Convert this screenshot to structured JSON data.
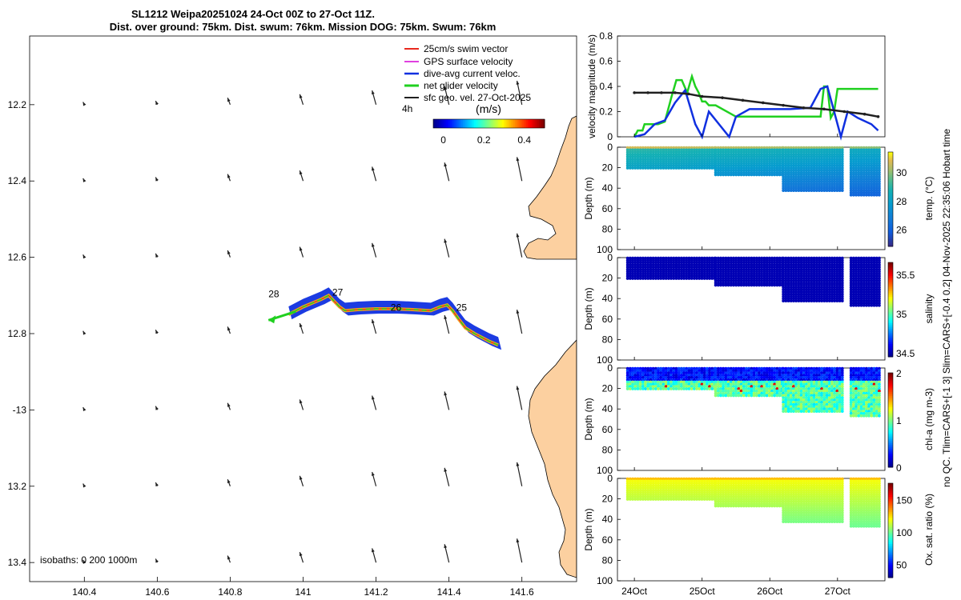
{
  "title_line1": "SL1212 Weipa20251024 24-Oct 00Z to 27-Oct 11Z.",
  "title_line2": "Dist. over ground: 75km. Dist. swum: 76km. Mission DOG: 75km. Swum: 76km",
  "side_note": "no QC. Tlim=CARS+[-1 3] Slim=CARS+[-0.4 0.2] 04-Nov-2025 22:35:06 Hobart time",
  "colors": {
    "land": "#fcd0a0",
    "swim": "#e8281e",
    "gps": "#e040e0",
    "dive_avg": "#1030e0",
    "net": "#20d020",
    "sfc": "#202020",
    "track_orange": "#f0a020"
  },
  "chart_data": [
    {
      "type": "map",
      "name": "track-map",
      "xlim": [
        140.25,
        141.75
      ],
      "ylim": [
        -13.45,
        -12.02
      ],
      "x_ticks": [
        140.4,
        140.6,
        140.8,
        141,
        141.2,
        141.4,
        141.6
      ],
      "x_tick_labels": [
        "140.4",
        "140.6",
        "140.8",
        "141",
        "141.2",
        "141.4",
        "141.6"
      ],
      "y_ticks": [
        -12.2,
        -12.4,
        -12.6,
        -12.8,
        -13,
        -13.2,
        -13.4
      ],
      "y_tick_labels": [
        "12.2",
        "12.4",
        "12.6",
        "12.8",
        "-13",
        "13.2",
        "13.4"
      ],
      "legend": [
        {
          "label": "25cm/s swim vector",
          "color_key": "swim"
        },
        {
          "label": "GPS surface velocity",
          "color_key": "gps"
        },
        {
          "label": "dive-avg current veloc.",
          "color_key": "dive_avg"
        },
        {
          "label": "net glider velocity",
          "color_key": "net"
        },
        {
          "label": "sfc geo. vel. 27-Oct-2025",
          "color_key": "sfc"
        }
      ],
      "speed_label": "4h",
      "colorbar_title": "(m/s)",
      "colorbar_ticks": [
        0,
        0.2,
        0.4
      ],
      "colorbar_tick_labels": [
        "0",
        "0.2",
        "0.4"
      ],
      "colorbar_range": [
        -0.05,
        0.5
      ],
      "isobaths_label": "isobaths: 0   200  1000m",
      "day_labels": [
        {
          "text": "28",
          "lon": 140.905,
          "lat": -12.705
        },
        {
          "text": "27",
          "lon": 141.08,
          "lat": -12.7
        },
        {
          "text": "26",
          "lon": 141.24,
          "lat": -12.74
        },
        {
          "text": "25",
          "lon": 141.42,
          "lat": -12.74
        }
      ],
      "track": [
        [
          141.535,
          -12.83
        ],
        [
          141.51,
          -12.82
        ],
        [
          141.47,
          -12.8
        ],
        [
          141.445,
          -12.785
        ],
        [
          141.425,
          -12.76
        ],
        [
          141.41,
          -12.74
        ],
        [
          141.395,
          -12.725
        ],
        [
          141.375,
          -12.73
        ],
        [
          141.35,
          -12.74
        ],
        [
          141.3,
          -12.737
        ],
        [
          141.25,
          -12.735
        ],
        [
          141.2,
          -12.735
        ],
        [
          141.15,
          -12.737
        ],
        [
          141.115,
          -12.74
        ],
        [
          141.1,
          -12.73
        ],
        [
          141.085,
          -12.715
        ],
        [
          141.07,
          -12.7
        ],
        [
          141.05,
          -12.71
        ],
        [
          141.0,
          -12.73
        ],
        [
          140.96,
          -12.75
        ]
      ],
      "net_arrow": {
        "from": [
          140.98,
          -12.742
        ],
        "to": [
          140.905,
          -12.765
        ]
      },
      "vector_grid": {
        "lons": [
          140.4,
          140.6,
          140.8,
          141.0,
          141.2,
          141.4,
          141.6
        ],
        "lats": [
          -12.2,
          -12.4,
          -12.6,
          -12.8,
          -13.0,
          -13.2,
          -13.4
        ],
        "speed_by_lon": [
          0.02,
          0.04,
          0.1,
          0.16,
          0.22,
          0.28,
          0.36
        ]
      }
    },
    {
      "type": "line",
      "name": "velocity-panel",
      "ylabel": "velocity magnitude (m/s)",
      "ylim": [
        0,
        0.8
      ],
      "y_ticks": [
        0,
        0.2,
        0.4,
        0.6,
        0.8
      ],
      "y_tick_labels": [
        "0",
        "0.2",
        "0.4",
        "0.6",
        "0.8"
      ],
      "xlim": [
        23.75,
        27.7
      ],
      "series": [
        {
          "name": "net glider velocity",
          "color_key": "net",
          "x": [
            24.0,
            24.05,
            24.12,
            24.15,
            24.2,
            24.35,
            24.45,
            24.55,
            24.62,
            24.7,
            24.78,
            24.85,
            24.9,
            24.95,
            25.0,
            25.05,
            25.1,
            25.2,
            25.5,
            25.9,
            26.2,
            26.6,
            26.75,
            26.8,
            26.85,
            26.9,
            26.95,
            27.0,
            27.2,
            27.6
          ],
          "y": [
            0.0,
            0.05,
            0.05,
            0.1,
            0.1,
            0.1,
            0.12,
            0.32,
            0.45,
            0.45,
            0.35,
            0.48,
            0.4,
            0.35,
            0.28,
            0.28,
            0.25,
            0.25,
            0.16,
            0.16,
            0.16,
            0.16,
            0.16,
            0.4,
            0.4,
            0.15,
            0.2,
            0.38,
            0.38,
            0.38
          ]
        },
        {
          "name": "dive-avg current veloc.",
          "color_key": "dive_avg",
          "x": [
            24.0,
            24.15,
            24.3,
            24.45,
            24.6,
            24.75,
            24.9,
            25.0,
            25.1,
            25.25,
            25.4,
            25.5,
            25.7,
            26.0,
            26.3,
            26.6,
            26.75,
            26.85,
            26.95,
            27.05,
            27.15,
            27.3,
            27.5,
            27.6
          ],
          "y": [
            0.0,
            0.02,
            0.1,
            0.13,
            0.27,
            0.37,
            0.1,
            0.0,
            0.2,
            0.1,
            0.0,
            0.16,
            0.22,
            0.22,
            0.22,
            0.23,
            0.38,
            0.4,
            0.2,
            0.0,
            0.2,
            0.15,
            0.1,
            0.05
          ]
        },
        {
          "name": "sfc geo. vel.",
          "color_key": "sfc",
          "x": [
            24.0,
            24.2,
            24.4,
            24.6,
            24.8,
            25.0,
            25.3,
            25.6,
            25.9,
            26.2,
            26.5,
            26.8,
            27.1,
            27.4,
            27.6
          ],
          "y": [
            0.35,
            0.35,
            0.35,
            0.35,
            0.34,
            0.32,
            0.31,
            0.29,
            0.27,
            0.25,
            0.23,
            0.22,
            0.2,
            0.18,
            0.16
          ]
        }
      ]
    },
    {
      "type": "scatter-section",
      "name": "temperature-section",
      "ylabel": "Depth (m)",
      "clabel": "temp. (°C)",
      "cmin": 24.8,
      "cmax": 31.4,
      "cticks": [
        26,
        28,
        30
      ],
      "ctick_labels": [
        "26",
        "28",
        "30"
      ],
      "profile_depth_steps": [
        [
          23.9,
          25.2,
          22
        ],
        [
          25.2,
          26.2,
          28
        ],
        [
          26.2,
          27.1,
          43
        ],
        [
          27.2,
          27.62,
          47
        ]
      ],
      "values": {
        "top": 29.0,
        "bottom": 26.5
      }
    },
    {
      "type": "scatter-section",
      "name": "salinity-section",
      "ylabel": "Depth (m)",
      "clabel": "salinity",
      "cmin": 34.45,
      "cmax": 35.65,
      "cticks": [
        34.5,
        35,
        35.5
      ],
      "ctick_labels": [
        "34.5",
        "35",
        "35.5"
      ],
      "profile_depth_steps": [
        [
          23.9,
          25.2,
          22
        ],
        [
          25.2,
          26.2,
          28
        ],
        [
          26.2,
          27.1,
          43
        ],
        [
          27.2,
          27.62,
          47
        ]
      ],
      "values": {
        "top": 34.5,
        "bottom": 34.5
      }
    },
    {
      "type": "scatter-section",
      "name": "chla-section",
      "ylabel": "Depth (m)",
      "clabel": "chl-a (mg m-3)",
      "cmin": 0,
      "cmax": 2,
      "cticks": [
        0,
        1,
        2
      ],
      "ctick_labels": [
        "0",
        "1",
        "2"
      ],
      "profile_depth_steps": [
        [
          23.9,
          25.2,
          22
        ],
        [
          25.2,
          26.2,
          28
        ],
        [
          26.2,
          27.1,
          43
        ],
        [
          27.2,
          27.62,
          47
        ]
      ],
      "values": {
        "top": 0.1,
        "bottom": 0.9
      }
    },
    {
      "type": "scatter-section",
      "name": "oxygen-section",
      "ylabel": "Depth (m)",
      "clabel": "Ox. sat. ratio (%)",
      "cmin": 30,
      "cmax": 175,
      "cticks": [
        50,
        100,
        150
      ],
      "ctick_labels": [
        "50",
        "100",
        "150"
      ],
      "profile_depth_steps": [
        [
          23.9,
          25.2,
          22
        ],
        [
          25.2,
          26.2,
          28
        ],
        [
          26.2,
          27.1,
          43
        ],
        [
          27.2,
          27.62,
          47
        ]
      ],
      "values": {
        "top": 118,
        "bottom": 102
      }
    },
    {
      "type": "axis",
      "name": "time-axis",
      "depth_ticks": [
        0,
        20,
        40,
        60,
        80,
        100
      ],
      "depth_tick_labels": [
        "0",
        "20",
        "40",
        "60",
        "80",
        "100"
      ],
      "time_ticks": [
        24,
        25,
        26,
        27
      ],
      "time_tick_labels": [
        "24Oct",
        "25Oct",
        "26Oct",
        "27Oct"
      ],
      "depth_range": [
        0,
        100
      ]
    }
  ]
}
